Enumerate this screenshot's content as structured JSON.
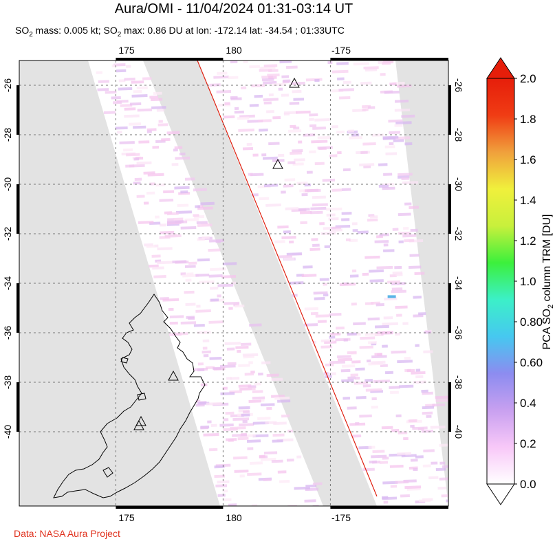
{
  "title": "Aura/OMI - 11/04/2024 01:31-03:14 UT",
  "subtitle_parts": {
    "a": "SO",
    "a_sub": "2",
    "b": " mass: 0.005 kt; SO",
    "b_sub": "2",
    "c": " max: 0.86 DU at lon: -172.14 lat: -34.54 ; 01:33UTC"
  },
  "credit": "Data: NASA Aura Project",
  "map": {
    "lon_ticks": [
      "175",
      "180",
      "-175"
    ],
    "lat_ticks": [
      "-26",
      "-28",
      "-30",
      "-32",
      "-34",
      "-36",
      "-38",
      "-40"
    ],
    "lon_range_deg": [
      170.5,
      190.5
    ],
    "lat_range": [
      -43,
      -25
    ],
    "gridlines": true,
    "volcano_markers": "triangles",
    "max_point": {
      "lon": -172.14,
      "lat": -34.54,
      "value_du": 0.86
    }
  },
  "colorbar": {
    "title_prefix": "PCA SO",
    "title_sub": "2",
    "title_suffix": " column TRM [DU]",
    "ticks": [
      "2.0",
      "1.8",
      "1.6",
      "1.4",
      "1.2",
      "1.0",
      "0.80",
      "0.60",
      "0.4",
      "0.2",
      "0.0"
    ],
    "min": 0.0,
    "max": 2.0,
    "colors": [
      "#ffffff",
      "#f8c8f8",
      "#c8a0f0",
      "#8c8cf0",
      "#46c8f0",
      "#3cf0c8",
      "#3cf03c",
      "#c8f03c",
      "#f0f03c",
      "#f0a03c",
      "#f03c14",
      "#e61e0a"
    ]
  }
}
